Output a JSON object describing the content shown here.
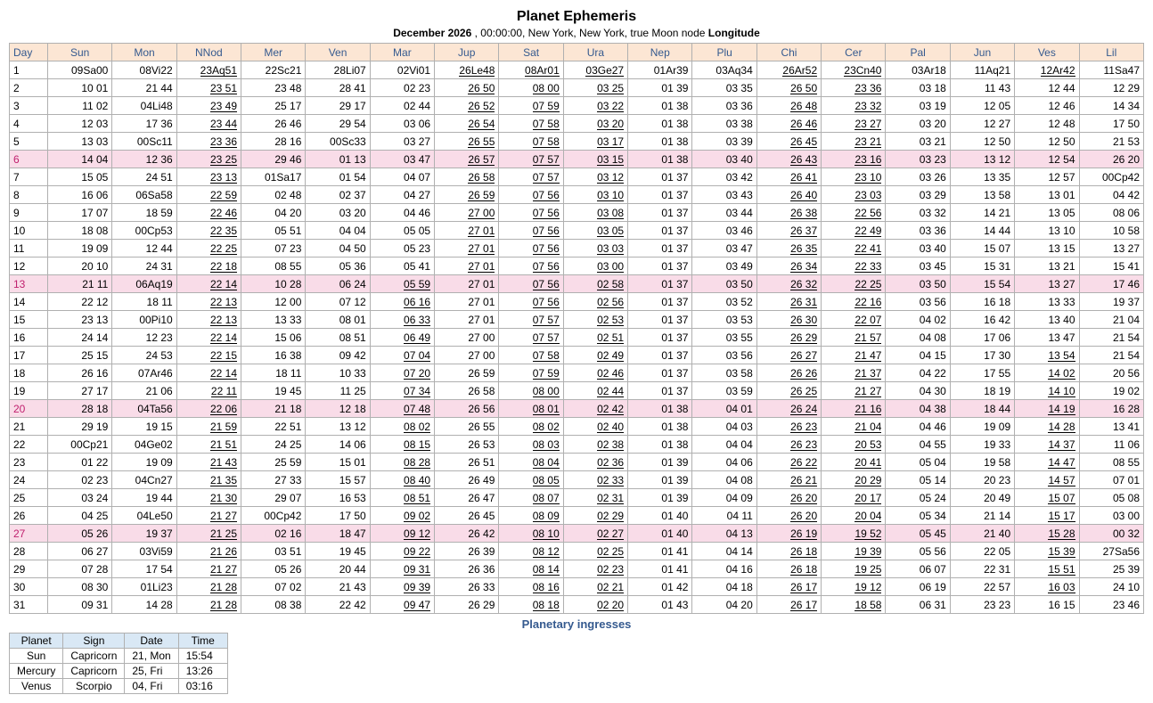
{
  "title": "Planet Ephemeris",
  "subtitle_bold": "December    2026",
  "subtitle_rest": " , 00:00:00, New York, New York, true Moon node ",
  "subtitle_tail": "Longitude",
  "columns": [
    "Day",
    "Sun",
    "Mon",
    "NNod",
    "Mer",
    "Ven",
    "Mar",
    "Jup",
    "Sat",
    "Ura",
    "Nep",
    "Plu",
    "Chi",
    "Cer",
    "Pal",
    "Jun",
    "Ves",
    "Lil"
  ],
  "retro_cols_always": [
    3,
    12,
    13
  ],
  "rows": [
    {
      "day": 1,
      "sun": false,
      "cells": [
        "09Sa00",
        "08Vi22",
        "23Aq51",
        "22Sc21",
        "28Li07",
        "02Vi01",
        "26Le48",
        "08Ar01",
        "03Ge27",
        "01Ar39",
        "03Aq34",
        "26Ar52",
        "23Cn40",
        "03Ar18",
        "11Aq21",
        "12Ar42",
        "11Sa47"
      ],
      "retro": [
        7,
        8,
        9,
        16
      ]
    },
    {
      "day": 2,
      "sun": false,
      "cells": [
        "10 01",
        "21 44",
        "23 51",
        "23 48",
        "28 41",
        "02 23",
        "26 50",
        "08 00",
        "03 25",
        "01 39",
        "03 35",
        "26 50",
        "23 36",
        "03 18",
        "11 43",
        "12 44",
        "12 29"
      ],
      "retro": [
        7,
        8,
        9
      ]
    },
    {
      "day": 3,
      "sun": false,
      "cells": [
        "11 02",
        "04Li48",
        "23 49",
        "25 17",
        "29 17",
        "02 44",
        "26 52",
        "07 59",
        "03 22",
        "01 38",
        "03 36",
        "26 48",
        "23 32",
        "03 19",
        "12 05",
        "12 46",
        "14 34"
      ],
      "retro": [
        7,
        8,
        9
      ]
    },
    {
      "day": 4,
      "sun": false,
      "cells": [
        "12 03",
        "17 36",
        "23 44",
        "26 46",
        "29 54",
        "03 06",
        "26 54",
        "07 58",
        "03 20",
        "01 38",
        "03 38",
        "26 46",
        "23 27",
        "03 20",
        "12 27",
        "12 48",
        "17 50"
      ],
      "retro": [
        7,
        8,
        9
      ]
    },
    {
      "day": 5,
      "sun": false,
      "cells": [
        "13 03",
        "00Sc11",
        "23 36",
        "28 16",
        "00Sc33",
        "03 27",
        "26 55",
        "07 58",
        "03 17",
        "01 38",
        "03 39",
        "26 45",
        "23 21",
        "03 21",
        "12 50",
        "12 50",
        "21 53"
      ],
      "retro": [
        7,
        8,
        9
      ]
    },
    {
      "day": 6,
      "sun": true,
      "cells": [
        "14 04",
        "12 36",
        "23 25",
        "29 46",
        "01 13",
        "03 47",
        "26 57",
        "07 57",
        "03 15",
        "01 38",
        "03 40",
        "26 43",
        "23 16",
        "03 23",
        "13 12",
        "12 54",
        "26 20"
      ],
      "retro": [
        7,
        8,
        9
      ]
    },
    {
      "day": 7,
      "sun": false,
      "cells": [
        "15 05",
        "24 51",
        "23 13",
        "01Sa17",
        "01 54",
        "04 07",
        "26 58",
        "07 57",
        "03 12",
        "01 37",
        "03 42",
        "26 41",
        "23 10",
        "03 26",
        "13 35",
        "12 57",
        "00Cp42"
      ],
      "retro": [
        7,
        8,
        9
      ]
    },
    {
      "day": 8,
      "sun": false,
      "cells": [
        "16 06",
        "06Sa58",
        "22 59",
        "02 48",
        "02 37",
        "04 27",
        "26 59",
        "07 56",
        "03 10",
        "01 37",
        "03 43",
        "26 40",
        "23 03",
        "03 29",
        "13 58",
        "13 01",
        "04 42"
      ],
      "retro": [
        7,
        8,
        9
      ]
    },
    {
      "day": 9,
      "sun": false,
      "cells": [
        "17 07",
        "18 59",
        "22 46",
        "04 20",
        "03 20",
        "04 46",
        "27 00",
        "07 56",
        "03 08",
        "01 37",
        "03 44",
        "26 38",
        "22 56",
        "03 32",
        "14 21",
        "13 05",
        "08 06"
      ],
      "retro": [
        7,
        8,
        9
      ]
    },
    {
      "day": 10,
      "sun": false,
      "cells": [
        "18 08",
        "00Cp53",
        "22 35",
        "05 51",
        "04 04",
        "05 05",
        "27 01",
        "07 56",
        "03 05",
        "01 37",
        "03 46",
        "26 37",
        "22 49",
        "03 36",
        "14 44",
        "13 10",
        "10 58"
      ],
      "retro": [
        7,
        8,
        9
      ]
    },
    {
      "day": 11,
      "sun": false,
      "cells": [
        "19 09",
        "12 44",
        "22 25",
        "07 23",
        "04 50",
        "05 23",
        "27 01",
        "07 56",
        "03 03",
        "01 37",
        "03 47",
        "26 35",
        "22 41",
        "03 40",
        "15 07",
        "13 15",
        "13 27"
      ],
      "retro": [
        7,
        8,
        9
      ]
    },
    {
      "day": 12,
      "sun": false,
      "cells": [
        "20 10",
        "24 31",
        "22 18",
        "08 55",
        "05 36",
        "05 41",
        "27 01",
        "07 56",
        "03 00",
        "01 37",
        "03 49",
        "26 34",
        "22 33",
        "03 45",
        "15 31",
        "13 21",
        "15 41"
      ],
      "retro": [
        7,
        8,
        9
      ]
    },
    {
      "day": 13,
      "sun": true,
      "cells": [
        "21 11",
        "06Aq19",
        "22 14",
        "10 28",
        "06 24",
        "05 59",
        "27 01",
        "07 56",
        "02 58",
        "01 37",
        "03 50",
        "26 32",
        "22 25",
        "03 50",
        "15 54",
        "13 27",
        "17 46"
      ],
      "retro": [
        6,
        8,
        9
      ]
    },
    {
      "day": 14,
      "sun": false,
      "cells": [
        "22 12",
        "18 11",
        "22 13",
        "12 00",
        "07 12",
        "06 16",
        "27 01",
        "07 56",
        "02 56",
        "01 37",
        "03 52",
        "26 31",
        "22 16",
        "03 56",
        "16 18",
        "13 33",
        "19 37"
      ],
      "retro": [
        6,
        8,
        9
      ]
    },
    {
      "day": 15,
      "sun": false,
      "cells": [
        "23 13",
        "00Pi10",
        "22 13",
        "13 33",
        "08 01",
        "06 33",
        "27 01",
        "07 57",
        "02 53",
        "01 37",
        "03 53",
        "26 30",
        "22 07",
        "04 02",
        "16 42",
        "13 40",
        "21 04"
      ],
      "retro": [
        6,
        8,
        9
      ]
    },
    {
      "day": 16,
      "sun": false,
      "cells": [
        "24 14",
        "12 23",
        "22 14",
        "15 06",
        "08 51",
        "06 49",
        "27 00",
        "07 57",
        "02 51",
        "01 37",
        "03 55",
        "26 29",
        "21 57",
        "04 08",
        "17 06",
        "13 47",
        "21 54"
      ],
      "retro": [
        6,
        8,
        9
      ]
    },
    {
      "day": 17,
      "sun": false,
      "cells": [
        "25 15",
        "24 53",
        "22 15",
        "16 38",
        "09 42",
        "07 04",
        "27 00",
        "07 58",
        "02 49",
        "01 37",
        "03 56",
        "26 27",
        "21 47",
        "04 15",
        "17 30",
        "13 54",
        "21 54"
      ],
      "retro": [
        6,
        8,
        9,
        16
      ]
    },
    {
      "day": 18,
      "sun": false,
      "cells": [
        "26 16",
        "07Ar46",
        "22 14",
        "18 11",
        "10 33",
        "07 20",
        "26 59",
        "07 59",
        "02 46",
        "01 37",
        "03 58",
        "26 26",
        "21 37",
        "04 22",
        "17 55",
        "14 02",
        "20 56"
      ],
      "retro": [
        6,
        8,
        9,
        16
      ]
    },
    {
      "day": 19,
      "sun": false,
      "cells": [
        "27 17",
        "21 06",
        "22 11",
        "19 45",
        "11 25",
        "07 34",
        "26 58",
        "08 00",
        "02 44",
        "01 37",
        "03 59",
        "26 25",
        "21 27",
        "04 30",
        "18 19",
        "14 10",
        "19 02"
      ],
      "retro": [
        6,
        8,
        9,
        16
      ]
    },
    {
      "day": 20,
      "sun": true,
      "cells": [
        "28 18",
        "04Ta56",
        "22 06",
        "21 18",
        "12 18",
        "07 48",
        "26 56",
        "08 01",
        "02 42",
        "01 38",
        "04 01",
        "26 24",
        "21 16",
        "04 38",
        "18 44",
        "14 19",
        "16 28"
      ],
      "retro": [
        6,
        8,
        9,
        16
      ]
    },
    {
      "day": 21,
      "sun": false,
      "cells": [
        "29 19",
        "19 15",
        "21 59",
        "22 51",
        "13 12",
        "08 02",
        "26 55",
        "08 02",
        "02 40",
        "01 38",
        "04 03",
        "26 23",
        "21 04",
        "04 46",
        "19 09",
        "14 28",
        "13 41"
      ],
      "retro": [
        6,
        8,
        9,
        16
      ]
    },
    {
      "day": 22,
      "sun": false,
      "cells": [
        "00Cp21",
        "04Ge02",
        "21 51",
        "24 25",
        "14 06",
        "08 15",
        "26 53",
        "08 03",
        "02 38",
        "01 38",
        "04 04",
        "26 23",
        "20 53",
        "04 55",
        "19 33",
        "14 37",
        "11 06"
      ],
      "retro": [
        6,
        8,
        9,
        16
      ]
    },
    {
      "day": 23,
      "sun": false,
      "cells": [
        "01 22",
        "19 09",
        "21 43",
        "25 59",
        "15 01",
        "08 28",
        "26 51",
        "08 04",
        "02 36",
        "01 39",
        "04 06",
        "26 22",
        "20 41",
        "05 04",
        "19 58",
        "14 47",
        "08 55"
      ],
      "retro": [
        6,
        8,
        9,
        16
      ]
    },
    {
      "day": 24,
      "sun": false,
      "cells": [
        "02 23",
        "04Cn27",
        "21 35",
        "27 33",
        "15 57",
        "08 40",
        "26 49",
        "08 05",
        "02 33",
        "01 39",
        "04 08",
        "26 21",
        "20 29",
        "05 14",
        "20 23",
        "14 57",
        "07 01"
      ],
      "retro": [
        6,
        8,
        9,
        16
      ]
    },
    {
      "day": 25,
      "sun": false,
      "cells": [
        "03 24",
        "19 44",
        "21 30",
        "29 07",
        "16 53",
        "08 51",
        "26 47",
        "08 07",
        "02 31",
        "01 39",
        "04 09",
        "26 20",
        "20 17",
        "05 24",
        "20 49",
        "15 07",
        "05 08"
      ],
      "retro": [
        6,
        8,
        9,
        16
      ]
    },
    {
      "day": 26,
      "sun": false,
      "cells": [
        "04 25",
        "04Le50",
        "21 27",
        "00Cp42",
        "17 50",
        "09 02",
        "26 45",
        "08 09",
        "02 29",
        "01 40",
        "04 11",
        "26 20",
        "20 04",
        "05 34",
        "21 14",
        "15 17",
        "03 00"
      ],
      "retro": [
        6,
        8,
        9,
        16
      ]
    },
    {
      "day": 27,
      "sun": true,
      "cells": [
        "05 26",
        "19 37",
        "21 25",
        "02 16",
        "18 47",
        "09 12",
        "26 42",
        "08 10",
        "02 27",
        "01 40",
        "04 13",
        "26 19",
        "19 52",
        "05 45",
        "21 40",
        "15 28",
        "00 32"
      ],
      "retro": [
        6,
        8,
        9,
        16
      ]
    },
    {
      "day": 28,
      "sun": false,
      "cells": [
        "06 27",
        "03Vi59",
        "21 26",
        "03 51",
        "19 45",
        "09 22",
        "26 39",
        "08 12",
        "02 25",
        "01 41",
        "04 14",
        "26 18",
        "19 39",
        "05 56",
        "22 05",
        "15 39",
        "27Sa56"
      ],
      "retro": [
        6,
        8,
        9,
        16
      ]
    },
    {
      "day": 29,
      "sun": false,
      "cells": [
        "07 28",
        "17 54",
        "21 27",
        "05 26",
        "20 44",
        "09 31",
        "26 36",
        "08 14",
        "02 23",
        "01 41",
        "04 16",
        "26 18",
        "19 25",
        "06 07",
        "22 31",
        "15 51",
        "25 39"
      ],
      "retro": [
        6,
        8,
        9,
        16
      ]
    },
    {
      "day": 30,
      "sun": false,
      "cells": [
        "08 30",
        "01Li23",
        "21 28",
        "07 02",
        "21 43",
        "09 39",
        "26 33",
        "08 16",
        "02 21",
        "01 42",
        "04 18",
        "26 17",
        "19 12",
        "06 19",
        "22 57",
        "16 03",
        "24 10"
      ],
      "retro": [
        6,
        8,
        9,
        16
      ]
    },
    {
      "day": 31,
      "sun": false,
      "cells": [
        "09 31",
        "14 28",
        "21 28",
        "08 38",
        "22 42",
        "09 47",
        "26 29",
        "08 18",
        "02 20",
        "01 43",
        "04 20",
        "26 17",
        "18 58",
        "06 31",
        "23 23",
        "16 15",
        "23 46"
      ],
      "retro": [
        6,
        8,
        9
      ]
    }
  ],
  "ingress_title": "Planetary   ingresses",
  "ingress_columns": [
    "Planet",
    "Sign",
    "Date",
    "Time"
  ],
  "ingresses": [
    {
      "planet": "Sun",
      "sign": "Capricorn",
      "date": "21, Mon",
      "time": "15:54"
    },
    {
      "planet": "Mercury",
      "sign": "Capricorn",
      "date": "25, Fri",
      "time": "13:26"
    },
    {
      "planet": "Venus",
      "sign": "Scorpio",
      "date": "04, Fri",
      "time": "03:16"
    }
  ]
}
